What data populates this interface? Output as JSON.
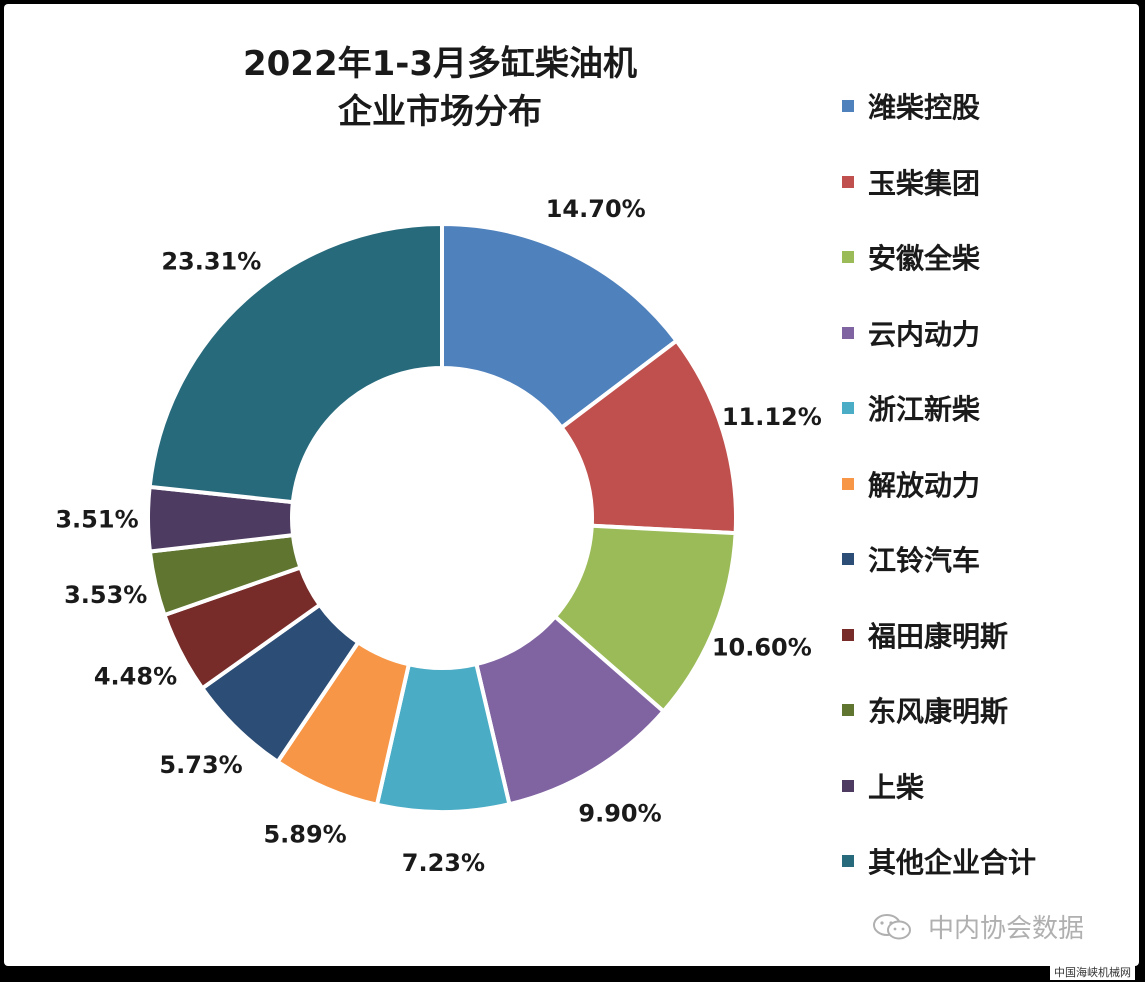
{
  "chart_data": {
    "type": "pie",
    "donut": true,
    "title": "2022年1-3月多缸柴油机企业市场分布",
    "title_lines": [
      "2022年1-3月多缸柴油机",
      "企业市场分布"
    ],
    "legend_position": "right",
    "categories": [
      "潍柴控股",
      "玉柴集团",
      "安徽全柴",
      "云内动力",
      "浙江新柴",
      "解放动力",
      "江铃汽车",
      "福田康明斯",
      "东风康明斯",
      "上柴",
      "其他企业合计"
    ],
    "values": [
      14.7,
      11.12,
      10.6,
      9.9,
      7.23,
      5.89,
      5.73,
      4.48,
      3.53,
      3.51,
      23.31
    ],
    "labels": [
      "14.70%",
      "11.12%",
      "10.60%",
      "9.90%",
      "7.23%",
      "5.89%",
      "5.73%",
      "4.48%",
      "3.53%",
      "3.51%",
      "23.31%"
    ],
    "colors": [
      "#4F81BD",
      "#C0504D",
      "#9BBB59",
      "#8064A2",
      "#4BACC6",
      "#F79646",
      "#2C4D75",
      "#772C2A",
      "#5F7530",
      "#4D3B62",
      "#276A7C"
    ]
  },
  "watermark": {
    "text": "中内协会数据",
    "icon": "wechat-icon"
  },
  "footer_note": "中国海峡机械网"
}
